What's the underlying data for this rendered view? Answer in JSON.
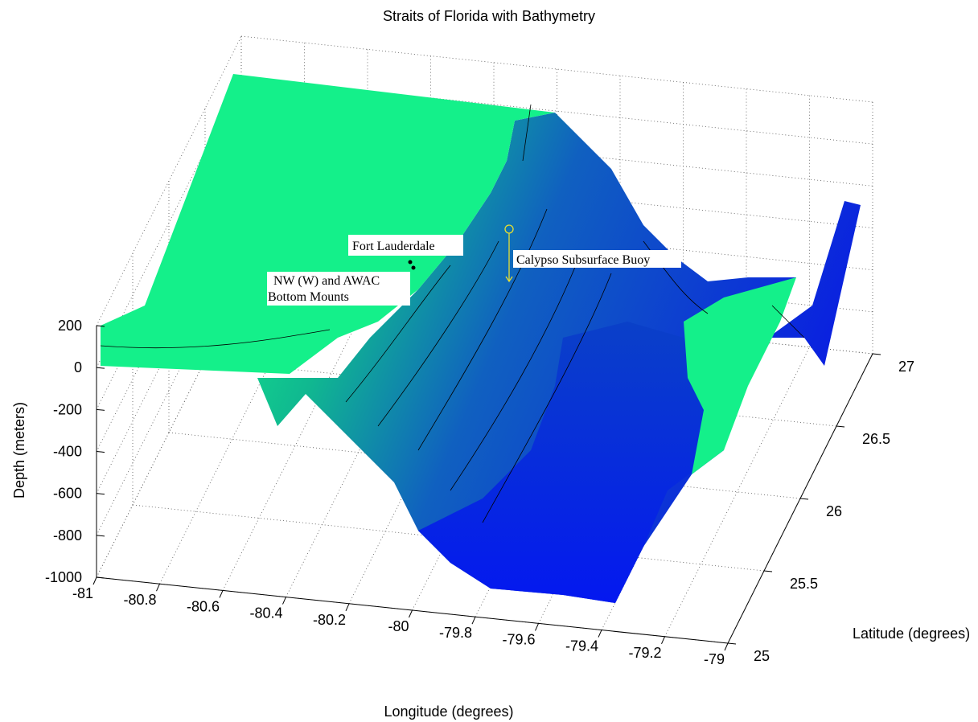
{
  "chart_data": {
    "type": "surface",
    "title": "Straits of Florida with Bathymetry",
    "xlabel": "Longitude (degrees)",
    "ylabel": "Latitude (degrees)",
    "zlabel": "Depth (meters)",
    "xlim": [
      -81,
      -79
    ],
    "xticks": [
      -81,
      -80.8,
      -80.6,
      -80.4,
      -80.2,
      -80,
      -79.8,
      -79.6,
      -79.4,
      -79.2,
      -79
    ],
    "ylim": [
      25,
      27
    ],
    "yticks": [
      25,
      25.5,
      26,
      26.5,
      27
    ],
    "zlim": [
      -1000,
      200
    ],
    "zticks": [
      200,
      0,
      -200,
      -400,
      -600,
      -800,
      -1000
    ],
    "grid": true,
    "annotations": [
      "Fort Lauderdale",
      "NW (W) and AWAC",
      "Bottom Mounts",
      "Calypso Subsurface Buoy"
    ]
  }
}
